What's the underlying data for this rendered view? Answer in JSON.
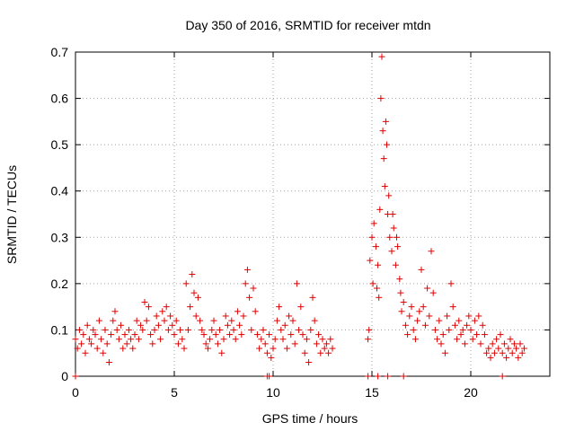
{
  "chart_data": {
    "type": "scatter",
    "title": "Day 350 of 2016, SRMTID for receiver mtdn",
    "xlabel": "GPS time / hours",
    "ylabel": "SRMTID / TECUs",
    "xlim": [
      0,
      24
    ],
    "ylim": [
      0,
      0.7
    ],
    "xticks": [
      0,
      5,
      10,
      15,
      20
    ],
    "yticks": [
      0,
      0.1,
      0.2,
      0.3,
      0.4,
      0.5,
      0.6,
      0.7
    ],
    "xtick_labels": [
      "0",
      "5",
      "10",
      "15",
      "20"
    ],
    "ytick_labels": [
      "0",
      "0.1",
      "0.2",
      "0.3",
      "0.4",
      "0.5",
      "0.6",
      "0.7"
    ],
    "grid": true,
    "marker": "+",
    "color": "#e00000",
    "series": [
      {
        "name": "SRMTID",
        "points": [
          [
            0.0,
            0.08
          ],
          [
            0.1,
            0.06
          ],
          [
            0.2,
            0.1
          ],
          [
            0.3,
            0.07
          ],
          [
            0.4,
            0.09
          ],
          [
            0.5,
            0.05
          ],
          [
            0.6,
            0.11
          ],
          [
            0.7,
            0.08
          ],
          [
            0.8,
            0.07
          ],
          [
            0.9,
            0.1
          ],
          [
            1.0,
            0.09
          ],
          [
            1.1,
            0.06
          ],
          [
            1.2,
            0.12
          ],
          [
            1.3,
            0.08
          ],
          [
            1.4,
            0.05
          ],
          [
            1.5,
            0.1
          ],
          [
            1.6,
            0.07
          ],
          [
            1.7,
            0.03
          ],
          [
            1.8,
            0.09
          ],
          [
            1.9,
            0.12
          ],
          [
            2.0,
            0.14
          ],
          [
            2.1,
            0.1
          ],
          [
            2.2,
            0.08
          ],
          [
            2.3,
            0.11
          ],
          [
            2.4,
            0.06
          ],
          [
            2.5,
            0.09
          ],
          [
            2.6,
            0.07
          ],
          [
            2.7,
            0.1
          ],
          [
            2.8,
            0.08
          ],
          [
            2.9,
            0.06
          ],
          [
            3.0,
            0.09
          ],
          [
            3.1,
            0.12
          ],
          [
            3.2,
            0.08
          ],
          [
            3.3,
            0.11
          ],
          [
            3.4,
            0.1
          ],
          [
            3.5,
            0.16
          ],
          [
            3.6,
            0.12
          ],
          [
            3.7,
            0.15
          ],
          [
            3.8,
            0.09
          ],
          [
            3.9,
            0.07
          ],
          [
            4.0,
            0.1
          ],
          [
            4.1,
            0.13
          ],
          [
            4.2,
            0.11
          ],
          [
            4.3,
            0.08
          ],
          [
            4.4,
            0.14
          ],
          [
            4.5,
            0.12
          ],
          [
            4.6,
            0.15
          ],
          [
            4.7,
            0.1
          ],
          [
            4.8,
            0.13
          ],
          [
            4.9,
            0.11
          ],
          [
            5.0,
            0.09
          ],
          [
            5.1,
            0.12
          ],
          [
            5.2,
            0.07
          ],
          [
            5.3,
            0.1
          ],
          [
            5.4,
            0.08
          ],
          [
            5.5,
            0.06
          ],
          [
            5.6,
            0.2
          ],
          [
            5.7,
            0.1
          ],
          [
            5.8,
            0.15
          ],
          [
            5.9,
            0.22
          ],
          [
            6.0,
            0.18
          ],
          [
            6.1,
            0.13
          ],
          [
            6.2,
            0.17
          ],
          [
            6.3,
            0.12
          ],
          [
            6.4,
            0.1
          ],
          [
            6.5,
            0.09
          ],
          [
            6.6,
            0.07
          ],
          [
            6.7,
            0.06
          ],
          [
            6.8,
            0.08
          ],
          [
            6.9,
            0.1
          ],
          [
            7.0,
            0.12
          ],
          [
            7.1,
            0.09
          ],
          [
            7.2,
            0.07
          ],
          [
            7.3,
            0.1
          ],
          [
            7.4,
            0.05
          ],
          [
            7.5,
            0.08
          ],
          [
            7.6,
            0.13
          ],
          [
            7.7,
            0.11
          ],
          [
            7.8,
            0.09
          ],
          [
            7.9,
            0.12
          ],
          [
            8.0,
            0.1
          ],
          [
            8.1,
            0.08
          ],
          [
            8.2,
            0.14
          ],
          [
            8.3,
            0.11
          ],
          [
            8.4,
            0.09
          ],
          [
            8.5,
            0.13
          ],
          [
            8.6,
            0.2
          ],
          [
            8.7,
            0.23
          ],
          [
            8.8,
            0.17
          ],
          [
            8.9,
            0.1
          ],
          [
            9.0,
            0.19
          ],
          [
            9.1,
            0.14
          ],
          [
            9.2,
            0.09
          ],
          [
            9.3,
            0.06
          ],
          [
            9.4,
            0.08
          ],
          [
            9.5,
            0.1
          ],
          [
            9.6,
            0.07
          ],
          [
            9.7,
            0.05
          ],
          [
            9.8,
            0.09
          ],
          [
            9.9,
            0.04
          ],
          [
            10.0,
            0.06
          ],
          [
            10.1,
            0.08
          ],
          [
            10.2,
            0.12
          ],
          [
            10.3,
            0.15
          ],
          [
            10.4,
            0.1
          ],
          [
            10.5,
            0.08
          ],
          [
            10.6,
            0.11
          ],
          [
            10.7,
            0.06
          ],
          [
            10.8,
            0.13
          ],
          [
            10.9,
            0.09
          ],
          [
            11.0,
            0.12
          ],
          [
            11.1,
            0.07
          ],
          [
            11.2,
            0.2
          ],
          [
            11.3,
            0.1
          ],
          [
            11.4,
            0.15
          ],
          [
            11.5,
            0.09
          ],
          [
            11.6,
            0.05
          ],
          [
            11.7,
            0.08
          ],
          [
            11.8,
            0.03
          ],
          [
            11.9,
            0.1
          ],
          [
            12.0,
            0.17
          ],
          [
            12.1,
            0.12
          ],
          [
            12.2,
            0.07
          ],
          [
            12.3,
            0.09
          ],
          [
            12.4,
            0.05
          ],
          [
            12.5,
            0.08
          ],
          [
            12.6,
            0.06
          ],
          [
            12.7,
            0.07
          ],
          [
            12.8,
            0.05
          ],
          [
            12.9,
            0.08
          ],
          [
            13.0,
            0.06
          ],
          [
            14.8,
            0.08
          ],
          [
            14.85,
            0.1
          ],
          [
            14.9,
            0.25
          ],
          [
            15.0,
            0.3
          ],
          [
            15.05,
            0.2
          ],
          [
            15.1,
            0.33
          ],
          [
            15.2,
            0.28
          ],
          [
            15.25,
            0.19
          ],
          [
            15.3,
            0.24
          ],
          [
            15.35,
            0.17
          ],
          [
            15.4,
            0.36
          ],
          [
            15.45,
            0.6
          ],
          [
            15.5,
            0.69
          ],
          [
            15.55,
            0.53
          ],
          [
            15.6,
            0.47
          ],
          [
            15.65,
            0.41
          ],
          [
            15.7,
            0.55
          ],
          [
            15.75,
            0.5
          ],
          [
            15.8,
            0.35
          ],
          [
            15.85,
            0.39
          ],
          [
            15.9,
            0.3
          ],
          [
            16.0,
            0.27
          ],
          [
            16.05,
            0.35
          ],
          [
            16.1,
            0.32
          ],
          [
            16.2,
            0.24
          ],
          [
            16.25,
            0.3
          ],
          [
            16.3,
            0.28
          ],
          [
            16.4,
            0.21
          ],
          [
            16.45,
            0.18
          ],
          [
            16.5,
            0.14
          ],
          [
            16.6,
            0.16
          ],
          [
            16.7,
            0.11
          ],
          [
            16.8,
            0.09
          ],
          [
            16.9,
            0.13
          ],
          [
            17.0,
            0.15
          ],
          [
            17.1,
            0.1
          ],
          [
            17.2,
            0.08
          ],
          [
            17.3,
            0.12
          ],
          [
            17.4,
            0.14
          ],
          [
            17.5,
            0.23
          ],
          [
            17.6,
            0.15
          ],
          [
            17.7,
            0.11
          ],
          [
            17.8,
            0.19
          ],
          [
            17.9,
            0.13
          ],
          [
            18.0,
            0.27
          ],
          [
            18.1,
            0.18
          ],
          [
            18.2,
            0.1
          ],
          [
            18.3,
            0.08
          ],
          [
            18.4,
            0.12
          ],
          [
            18.5,
            0.07
          ],
          [
            18.6,
            0.09
          ],
          [
            18.7,
            0.05
          ],
          [
            18.8,
            0.13
          ],
          [
            18.9,
            0.1
          ],
          [
            19.0,
            0.2
          ],
          [
            19.1,
            0.15
          ],
          [
            19.2,
            0.11
          ],
          [
            19.3,
            0.08
          ],
          [
            19.4,
            0.12
          ],
          [
            19.5,
            0.09
          ],
          [
            19.6,
            0.1
          ],
          [
            19.7,
            0.07
          ],
          [
            19.8,
            0.11
          ],
          [
            19.9,
            0.13
          ],
          [
            20.0,
            0.1
          ],
          [
            20.1,
            0.08
          ],
          [
            20.2,
            0.12
          ],
          [
            20.3,
            0.09
          ],
          [
            20.4,
            0.13
          ],
          [
            20.5,
            0.07
          ],
          [
            20.6,
            0.11
          ],
          [
            20.7,
            0.09
          ],
          [
            20.8,
            0.05
          ],
          [
            20.9,
            0.06
          ],
          [
            21.0,
            0.04
          ],
          [
            21.1,
            0.07
          ],
          [
            21.2,
            0.05
          ],
          [
            21.3,
            0.08
          ],
          [
            21.4,
            0.06
          ],
          [
            21.5,
            0.09
          ],
          [
            21.6,
            0.05
          ],
          [
            21.7,
            0.07
          ],
          [
            21.8,
            0.04
          ],
          [
            21.9,
            0.06
          ],
          [
            22.0,
            0.08
          ],
          [
            22.1,
            0.05
          ],
          [
            22.2,
            0.07
          ],
          [
            22.3,
            0.06
          ],
          [
            22.4,
            0.04
          ],
          [
            22.5,
            0.07
          ],
          [
            22.6,
            0.05
          ],
          [
            22.7,
            0.06
          ],
          [
            0.0,
            0.0
          ],
          [
            9.7,
            0.0
          ],
          [
            9.8,
            0.0
          ],
          [
            14.8,
            0.0
          ],
          [
            15.3,
            0.0
          ],
          [
            15.8,
            0.0
          ],
          [
            16.6,
            0.0
          ],
          [
            21.6,
            0.0
          ]
        ]
      }
    ]
  }
}
